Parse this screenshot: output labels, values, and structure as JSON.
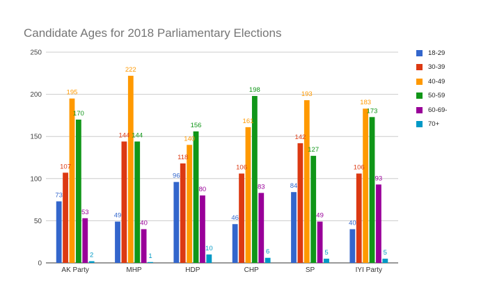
{
  "chart_data": {
    "type": "bar",
    "title": "Candidate Ages for 2018 Parliamentary Elections",
    "xlabel": "",
    "ylabel": "",
    "ylim": [
      0,
      250
    ],
    "yticks": [
      "0",
      "50",
      "100",
      "150",
      "200",
      "250"
    ],
    "grid": true,
    "legend_position": "right",
    "categories": [
      "AK Party",
      "MHP",
      "HDP",
      "CHP",
      "SP",
      "IYI Party"
    ],
    "series": [
      {
        "name": "18-29",
        "color": "#3366cc",
        "values": [
          73,
          49,
          96,
          46,
          84,
          40
        ]
      },
      {
        "name": "30-39",
        "color": "#dc3912",
        "values": [
          107,
          144,
          118,
          106,
          142,
          106
        ]
      },
      {
        "name": "40-49",
        "color": "#ff9900",
        "values": [
          195,
          222,
          140,
          161,
          193,
          183
        ]
      },
      {
        "name": "50-59",
        "color": "#109618",
        "values": [
          170,
          144,
          156,
          198,
          127,
          173
        ]
      },
      {
        "name": "60-69-",
        "color": "#990099",
        "values": [
          53,
          40,
          80,
          83,
          49,
          93
        ]
      },
      {
        "name": "70+",
        "color": "#0099c6",
        "values": [
          2,
          1,
          10,
          6,
          5,
          5
        ]
      }
    ]
  }
}
